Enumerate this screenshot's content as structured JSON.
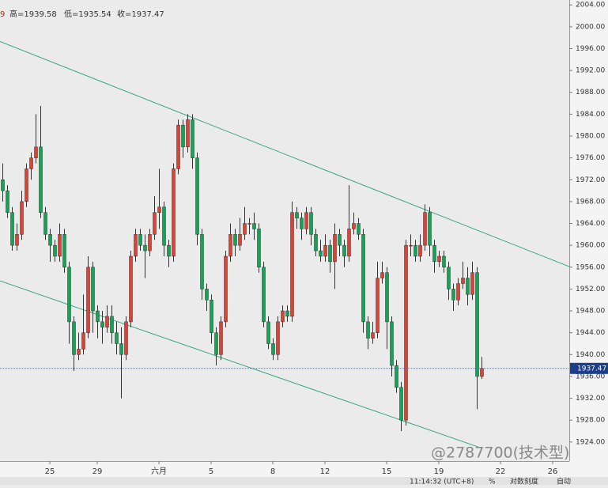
{
  "chart_data": {
    "type": "candlestick",
    "header": [
      "9",
      "高=1939.58",
      "低=1935.54",
      "收=1937.47"
    ],
    "categories": [
      null,
      null,
      null,
      null,
      null,
      null,
      null,
      null,
      null,
      null,
      "25",
      null,
      null,
      null,
      null,
      null,
      null,
      null,
      null,
      null,
      "29",
      null,
      null,
      null,
      null,
      null,
      null,
      null,
      null,
      null,
      null,
      null,
      null,
      "六月",
      null,
      null,
      null,
      null,
      null,
      null,
      null,
      null,
      null,
      null,
      "5",
      null,
      null,
      null,
      null,
      null,
      null,
      null,
      null,
      null,
      null,
      null,
      null,
      "8",
      null,
      null,
      null,
      null,
      null,
      null,
      null,
      null,
      null,
      null,
      "12",
      null,
      null,
      null,
      null,
      null,
      null,
      null,
      null,
      null,
      null,
      null,
      null,
      "15",
      null,
      null,
      null,
      null,
      null,
      null,
      null,
      null,
      null,
      null,
      "19",
      null,
      null,
      null,
      null,
      null,
      null,
      null,
      null,
      null,
      null,
      null,
      null,
      "22",
      null,
      null,
      null,
      null,
      null,
      null,
      null,
      null,
      null,
      null,
      "26"
    ],
    "ohlc": [
      [
        1972,
        1975,
        1968,
        1970
      ],
      [
        1970,
        1971,
        1965,
        1966
      ],
      [
        1966,
        1967,
        1959,
        1960
      ],
      [
        1960,
        1964,
        1959,
        1962
      ],
      [
        1962,
        1970,
        1961,
        1968
      ],
      [
        1968,
        1975,
        1967,
        1974
      ],
      [
        1974,
        1977,
        1972,
        1976
      ],
      [
        1976,
        1984,
        1975,
        1978
      ],
      [
        1978,
        1985.5,
        1965,
        1966
      ],
      [
        1966,
        1967,
        1961,
        1962
      ],
      [
        1962,
        1963,
        1957,
        1960
      ],
      [
        1960,
        1961,
        1957,
        1958
      ],
      [
        1958,
        1964,
        1957,
        1962
      ],
      [
        1962,
        1963,
        1955,
        1956
      ],
      [
        1956,
        1957,
        1942,
        1946
      ],
      [
        1946,
        1947,
        1937,
        1940
      ],
      [
        1940,
        1944,
        1939,
        1941
      ],
      [
        1941,
        1951,
        1940,
        1944
      ],
      [
        1944,
        1958,
        1943,
        1956
      ],
      [
        1956,
        1957,
        1944,
        1948
      ],
      [
        1948,
        1949,
        1943,
        1946
      ],
      [
        1946,
        1948,
        1942,
        1945
      ],
      [
        1945,
        1949,
        1944,
        1947
      ],
      [
        1947,
        1949,
        1942,
        1944
      ],
      [
        1944,
        1946,
        1940,
        1942
      ],
      [
        1942,
        1945,
        1932,
        1940
      ],
      [
        1940,
        1947,
        1939,
        1946
      ],
      [
        1946,
        1959,
        1945,
        1958
      ],
      [
        1958,
        1963,
        1957,
        1962
      ],
      [
        1962,
        1963,
        1959,
        1960
      ],
      [
        1960,
        1962,
        1954,
        1959
      ],
      [
        1959,
        1963,
        1958,
        1962
      ],
      [
        1962,
        1969,
        1961,
        1966
      ],
      [
        1966,
        1974,
        1963,
        1967
      ],
      [
        1967,
        1968,
        1958,
        1960
      ],
      [
        1960,
        1961,
        1956,
        1958
      ],
      [
        1958,
        1975,
        1957,
        1974
      ],
      [
        1974,
        1983,
        1973,
        1982
      ],
      [
        1982,
        1983,
        1976,
        1978
      ],
      [
        1978,
        1984,
        1977,
        1983
      ],
      [
        1983,
        1984,
        1974,
        1976
      ],
      [
        1976,
        1977,
        1960,
        1962
      ],
      [
        1962,
        1963,
        1950,
        1952
      ],
      [
        1952,
        1953,
        1948,
        1950
      ],
      [
        1950,
        1951,
        1942,
        1944
      ],
      [
        1944,
        1945,
        1938,
        1940
      ],
      [
        1940,
        1947,
        1939,
        1946
      ],
      [
        1946,
        1959,
        1945,
        1958
      ],
      [
        1958,
        1964,
        1957,
        1962
      ],
      [
        1962,
        1963,
        1958,
        1960
      ],
      [
        1960,
        1965,
        1959,
        1962
      ],
      [
        1962,
        1967,
        1961,
        1964
      ],
      [
        1964,
        1965,
        1962,
        1964
      ],
      [
        1964,
        1966,
        1961,
        1963
      ],
      [
        1963,
        1964,
        1955,
        1956
      ],
      [
        1956,
        1957,
        1945,
        1946
      ],
      [
        1946,
        1947,
        1941,
        1942
      ],
      [
        1942,
        1943,
        1939,
        1940
      ],
      [
        1940,
        1947,
        1939,
        1946
      ],
      [
        1946,
        1949,
        1945,
        1948
      ],
      [
        1948,
        1949,
        1946,
        1947
      ],
      [
        1947,
        1968,
        1946,
        1966
      ],
      [
        1966,
        1967,
        1963,
        1965
      ],
      [
        1965,
        1966,
        1961,
        1963
      ],
      [
        1963,
        1967,
        1962,
        1966
      ],
      [
        1966,
        1967,
        1960,
        1962
      ],
      [
        1962,
        1963,
        1958,
        1959
      ],
      [
        1959,
        1961,
        1957,
        1958
      ],
      [
        1958,
        1962,
        1957,
        1960
      ],
      [
        1960,
        1961,
        1955,
        1957
      ],
      [
        1957,
        1964,
        1952,
        1962
      ],
      [
        1962,
        1963,
        1958,
        1960
      ],
      [
        1960,
        1961,
        1956,
        1958
      ],
      [
        1958,
        1971,
        1957,
        1963
      ],
      [
        1963,
        1966,
        1962,
        1964
      ],
      [
        1964,
        1965,
        1961,
        1962
      ],
      [
        1962,
        1963,
        1944,
        1946
      ],
      [
        1946,
        1947,
        1941,
        1943
      ],
      [
        1943,
        1946,
        1942,
        1944
      ],
      [
        1944,
        1957,
        1943,
        1954
      ],
      [
        1954,
        1957,
        1953,
        1955
      ],
      [
        1955,
        1956,
        1941,
        1946
      ],
      [
        1946,
        1947,
        1936,
        1938
      ],
      [
        1938,
        1939,
        1933,
        1934
      ],
      [
        1934,
        1935,
        1926,
        1928
      ],
      [
        1928,
        1961,
        1927,
        1960
      ],
      [
        1960,
        1962,
        1958,
        1960
      ],
      [
        1960,
        1961,
        1957,
        1958
      ],
      [
        1958,
        1962,
        1957,
        1960
      ],
      [
        1960,
        1967.5,
        1959,
        1966
      ],
      [
        1966,
        1967,
        1958,
        1960
      ],
      [
        1960,
        1961,
        1955,
        1957
      ],
      [
        1957,
        1959,
        1956,
        1958
      ],
      [
        1958,
        1959,
        1955,
        1956
      ],
      [
        1956,
        1957,
        1950,
        1952
      ],
      [
        1952,
        1953,
        1948,
        1950
      ],
      [
        1950,
        1954,
        1949,
        1953
      ],
      [
        1953,
        1957,
        1952,
        1954
      ],
      [
        1954,
        1956,
        1949,
        1951
      ],
      [
        1951,
        1957,
        1950,
        1955
      ],
      [
        1955,
        1956,
        1930,
        1936
      ],
      [
        1936,
        1939.58,
        1935.54,
        1937.47
      ],
      null,
      null,
      null,
      null,
      null,
      null,
      null,
      null,
      null,
      null,
      null,
      null,
      null,
      null,
      null
    ],
    "up_color": "#d0473c",
    "down_color": "#1f9e5a",
    "trendlines": [
      {
        "x": [
          -0.5,
          119.5
        ],
        "y": [
          1997.3,
          1956.1
        ],
        "color": "#3aa57e"
      },
      {
        "x": [
          -0.5,
          100.3
        ],
        "y": [
          1953.5,
          1923.1
        ],
        "color": "#3aa57e"
      }
    ],
    "last_price": 1937.47,
    "ylim": [
      1920.5,
      2004.9
    ],
    "yticks": [
      {
        "value": 1924,
        "label": "1924.00"
      },
      {
        "value": 1928,
        "label": "1928.00"
      },
      {
        "value": 1932,
        "label": "1932.00"
      },
      {
        "value": 1936,
        "label": "1936.00"
      },
      {
        "value": 1940,
        "label": "1940.00"
      },
      {
        "value": 1944,
        "label": "1944.00"
      },
      {
        "value": 1948,
        "label": "1948.00"
      },
      {
        "value": 1952,
        "label": "1952.00"
      },
      {
        "value": 1956,
        "label": "1956.00"
      },
      {
        "value": 1960,
        "label": "1960.00"
      },
      {
        "value": 1964,
        "label": "1964.00"
      },
      {
        "value": 1968,
        "label": "1968.00"
      },
      {
        "value": 1972,
        "label": "1972.00"
      },
      {
        "value": 1976,
        "label": "1976.00"
      },
      {
        "value": 1980,
        "label": "1980.00"
      },
      {
        "value": 1984,
        "label": "1984.00"
      },
      {
        "value": 1988,
        "label": "1988.00"
      },
      {
        "value": 1992,
        "label": "1992.00"
      },
      {
        "value": 1996,
        "label": "1996.00"
      },
      {
        "value": 2000,
        "label": "2000.00"
      },
      {
        "value": 2004,
        "label": "2004.00"
      }
    ]
  },
  "watermark": "@2787700(技术型)",
  "status": {
    "time": "11:14:32 (UTC+8)",
    "percent": "%",
    "log": "对数刻度",
    "auto": "自动"
  }
}
